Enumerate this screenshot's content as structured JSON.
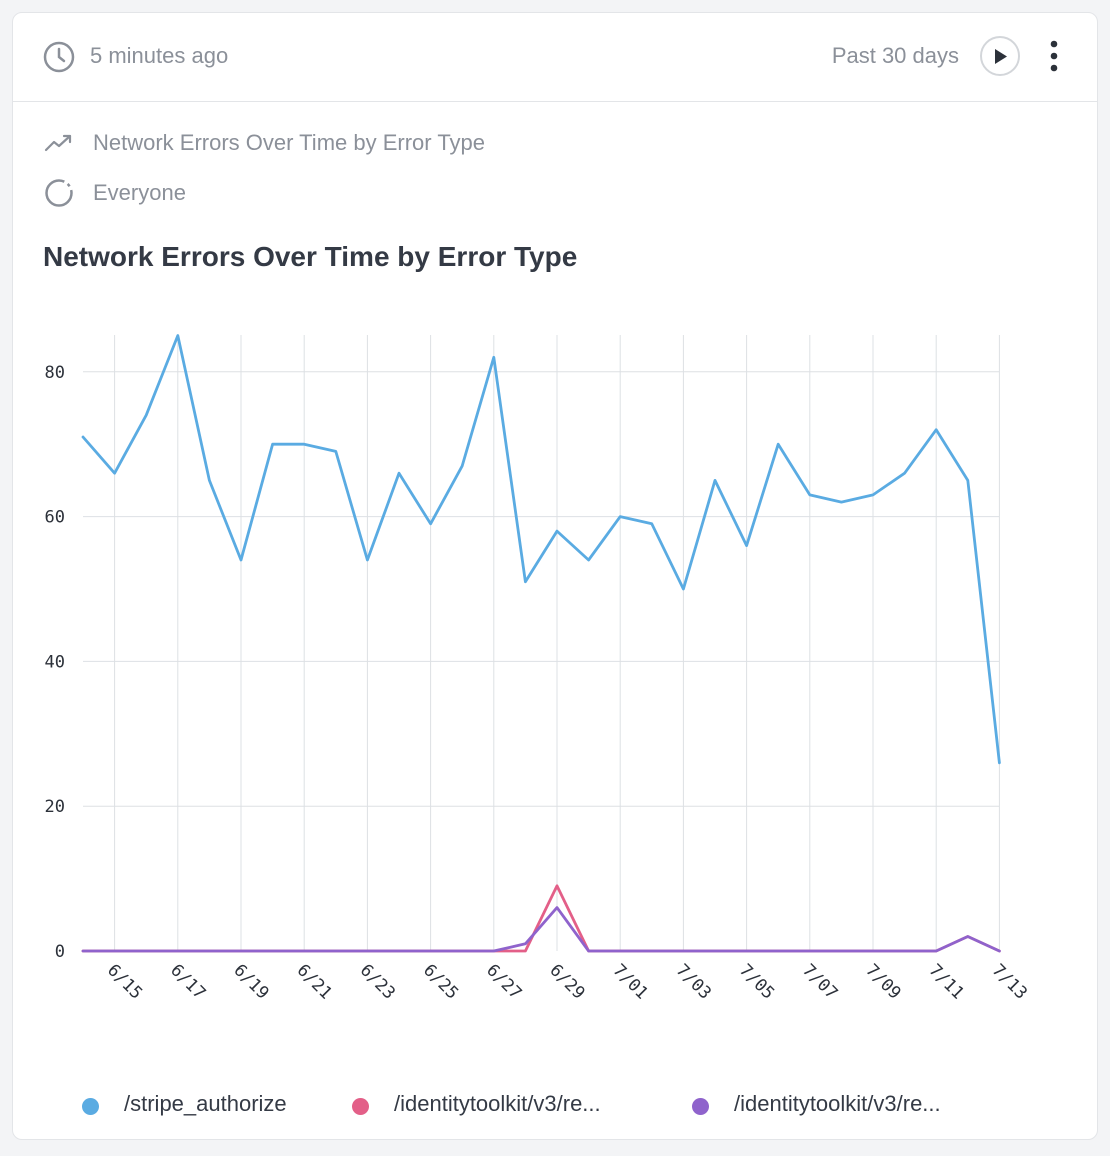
{
  "header": {
    "updated": "5 minutes ago",
    "range": "Past 30 days"
  },
  "meta": {
    "query_name": "Network Errors Over Time by Error Type",
    "segment": "Everyone"
  },
  "icons": {
    "clock": "clock-icon",
    "play": "play-icon",
    "more": "more-vertical-icon",
    "trend": "trend-line-icon",
    "segment": "dashed-circle-icon"
  },
  "colors": {
    "series_1": "#5aabe2",
    "series_2": "#e35f88",
    "series_3": "#8f63cc"
  },
  "chart_data": {
    "type": "line",
    "title": "Network Errors Over Time by Error Type",
    "xlabel": "",
    "ylabel": "",
    "ylim": [
      0,
      80
    ],
    "y_ticks": [
      0,
      20,
      40,
      60,
      80
    ],
    "x_tick_labels": [
      "6/15",
      "6/17",
      "6/19",
      "6/21",
      "6/23",
      "6/25",
      "6/27",
      "6/29",
      "7/01",
      "7/03",
      "7/05",
      "7/07",
      "7/09",
      "7/11",
      "7/13"
    ],
    "grid": true,
    "legend_position": "bottom",
    "x": [
      "6/14",
      "6/15",
      "6/16",
      "6/17",
      "6/18",
      "6/19",
      "6/20",
      "6/21",
      "6/22",
      "6/23",
      "6/24",
      "6/25",
      "6/26",
      "6/27",
      "6/28",
      "6/29",
      "6/30",
      "7/01",
      "7/02",
      "7/03",
      "7/04",
      "7/05",
      "7/06",
      "7/07",
      "7/08",
      "7/09",
      "7/10",
      "7/11",
      "7/12",
      "7/13"
    ],
    "series": [
      {
        "name": "/stripe_authorize",
        "color": "#5aabe2",
        "values": [
          71,
          66,
          74,
          85,
          65,
          54,
          70,
          70,
          69,
          54,
          66,
          59,
          67,
          82,
          51,
          58,
          54,
          60,
          59,
          50,
          65,
          56,
          70,
          63,
          62,
          63,
          66,
          72,
          65,
          26
        ]
      },
      {
        "name": "/identitytoolkit/v3/re...",
        "color": "#e35f88",
        "values": [
          0,
          0,
          0,
          0,
          0,
          0,
          0,
          0,
          0,
          0,
          0,
          0,
          0,
          0,
          0,
          9,
          0,
          0,
          0,
          0,
          0,
          0,
          0,
          0,
          0,
          0,
          0,
          0,
          2,
          0
        ]
      },
      {
        "name": "/identitytoolkit/v3/re...",
        "color": "#8f63cc",
        "values": [
          0,
          0,
          0,
          0,
          0,
          0,
          0,
          0,
          0,
          0,
          0,
          0,
          0,
          0,
          1,
          6,
          0,
          0,
          0,
          0,
          0,
          0,
          0,
          0,
          0,
          0,
          0,
          0,
          2,
          0
        ]
      }
    ]
  }
}
